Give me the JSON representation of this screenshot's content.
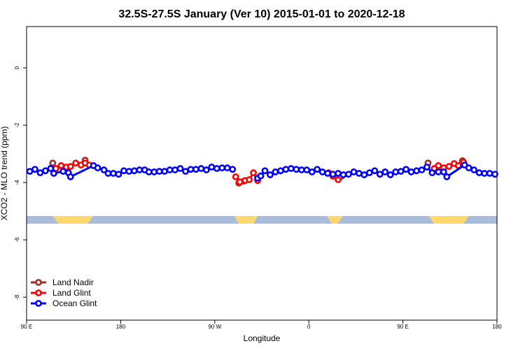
{
  "chart_data": {
    "type": "line",
    "title": "32.5S-27.5S January (Ver 10)   2015-01-01 to 2020-12-18",
    "x_label": "Longitude",
    "y_label": "XCO2 - MLO trend (ppm)",
    "xlim": [
      90,
      540
    ],
    "ylim": [
      -8.8,
      1.44
    ],
    "xticks": [
      {
        "value": 90,
        "label": "90 E"
      },
      180,
      {
        "value": 270,
        "label": "90 W"
      },
      {
        "value": 360,
        "label": "0"
      },
      {
        "value": 450,
        "label": "90 E"
      },
      {
        "value": 540,
        "label": "180"
      }
    ],
    "yticks": [
      0,
      -2,
      -4,
      -6,
      -8
    ],
    "legend": "bottomleft",
    "series": [
      {
        "name": "Land Nadir",
        "color": "#a52a2a",
        "x": [
          115,
          130,
          146,
          220,
          293,
          298,
          400,
          474,
          490,
          507
        ],
        "values": [
          -3.32,
          null,
          -3.22,
          null,
          -4.02,
          -3.95,
          null,
          -3.32,
          null,
          -3.24
        ]
      },
      {
        "name": "Land Glint",
        "color": "#ff0000",
        "x": [
          118,
          123,
          128,
          132,
          137,
          142,
          146,
          150,
          220,
          290,
          294,
          299,
          303,
          307,
          311,
          340,
          379,
          383,
          388,
          391,
          440,
          480,
          484,
          489,
          494,
          499,
          503,
          508
        ],
        "values": [
          -3.51,
          -3.41,
          -3.46,
          -3.44,
          -3.32,
          -3.39,
          -3.32,
          -3.39,
          null,
          -3.8,
          -3.98,
          -3.93,
          -3.9,
          -3.66,
          -3.93,
          null,
          -3.66,
          -3.78,
          -3.9,
          -3.78,
          null,
          -3.51,
          -3.41,
          -3.49,
          -3.44,
          -3.34,
          -3.41,
          -3.29
        ]
      },
      {
        "name": "Ocean Glint",
        "color": "#0000ff",
        "x": [
          93,
          98,
          103,
          108,
          113,
          116,
          125,
          130,
          132,
          154,
          158,
          164,
          168,
          173,
          178,
          183,
          188,
          193,
          198,
          203,
          207,
          212,
          217,
          222,
          227,
          232,
          237,
          242,
          247,
          252,
          257,
          262,
          267,
          272,
          277,
          282,
          287,
          300,
          311,
          314,
          318,
          323,
          328,
          333,
          338,
          343,
          348,
          353,
          358,
          363,
          368,
          373,
          378,
          383,
          388,
          393,
          398,
          403,
          408,
          413,
          418,
          423,
          428,
          433,
          438,
          443,
          448,
          453,
          458,
          463,
          468,
          473,
          478,
          484,
          489,
          492,
          509,
          513,
          518,
          523,
          528,
          533,
          538
        ],
        "values": [
          -3.61,
          -3.54,
          -3.66,
          -3.59,
          -3.51,
          -3.68,
          -3.61,
          -3.66,
          -3.8,
          -3.41,
          -3.49,
          -3.56,
          -3.68,
          -3.68,
          -3.71,
          -3.59,
          -3.61,
          -3.59,
          -3.56,
          -3.56,
          -3.63,
          -3.63,
          -3.61,
          -3.61,
          -3.56,
          -3.56,
          -3.51,
          -3.61,
          -3.54,
          -3.54,
          -3.51,
          -3.56,
          -3.46,
          -3.51,
          -3.49,
          -3.49,
          -3.54,
          null,
          -3.85,
          -3.77,
          -3.59,
          -3.73,
          -3.63,
          -3.59,
          -3.54,
          -3.51,
          -3.54,
          -3.56,
          -3.56,
          -3.63,
          -3.54,
          -3.63,
          -3.68,
          -3.71,
          -3.68,
          -3.73,
          -3.71,
          -3.63,
          -3.68,
          -3.73,
          -3.66,
          -3.59,
          -3.71,
          -3.63,
          -3.73,
          -3.63,
          -3.61,
          -3.54,
          -3.63,
          -3.59,
          -3.56,
          -3.46,
          -3.66,
          -3.63,
          -3.63,
          -3.8,
          -3.39,
          -3.49,
          -3.56,
          -3.66,
          -3.68,
          -3.68,
          -3.71
        ]
      }
    ]
  }
}
